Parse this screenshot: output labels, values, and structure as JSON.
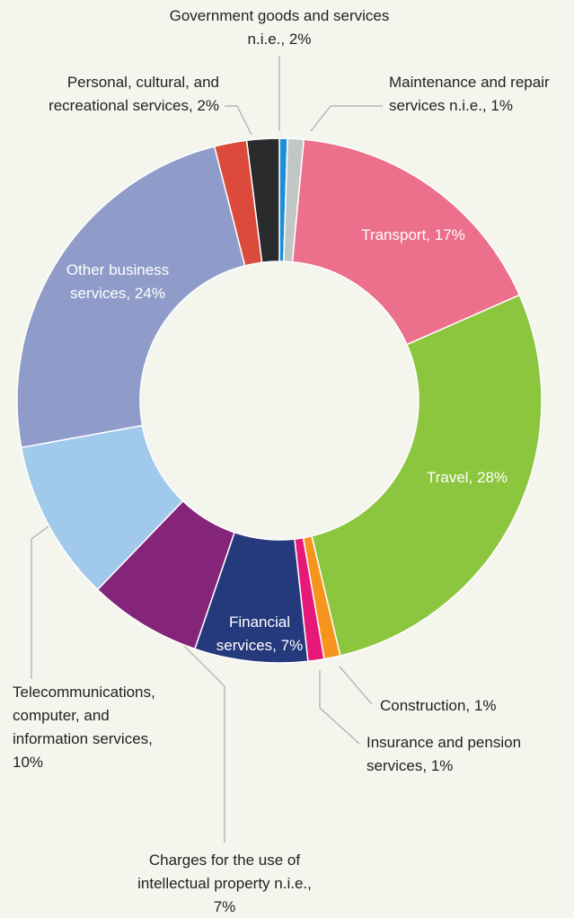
{
  "chart_data": {
    "type": "pie",
    "categories": [
      null,
      "Maintenance and repair services n.i.e.,",
      "Transport,",
      "Travel,",
      "Construction,",
      "Insurance and pension services,",
      "Financial services,",
      "Charges for the use of intellectual property n.i.e.,",
      "Telecommunications, computer, and information services,",
      "Other business services,",
      "Personal, cultural, and recreational services,",
      "Government goods and services n.i.e.,"
    ],
    "values": [
      0.5,
      1,
      17,
      28,
      1,
      1,
      7,
      7,
      10,
      24,
      2,
      2
    ],
    "value_labels": [
      null,
      "1%",
      "17%",
      "28%",
      "1%",
      "1%",
      "7%",
      "7%",
      "10%",
      "24%",
      "2%",
      "2%"
    ],
    "colors": [
      "#1a8fd8",
      "#c0c7c5",
      "#ec6f8b",
      "#8cc63f",
      "#f7941d",
      "#e6197a",
      "#253a7c",
      "#84257a",
      "#a0c9eb",
      "#8f9cc9",
      "#dc4a3b",
      "#2a2b2d"
    ],
    "donut": true
  }
}
